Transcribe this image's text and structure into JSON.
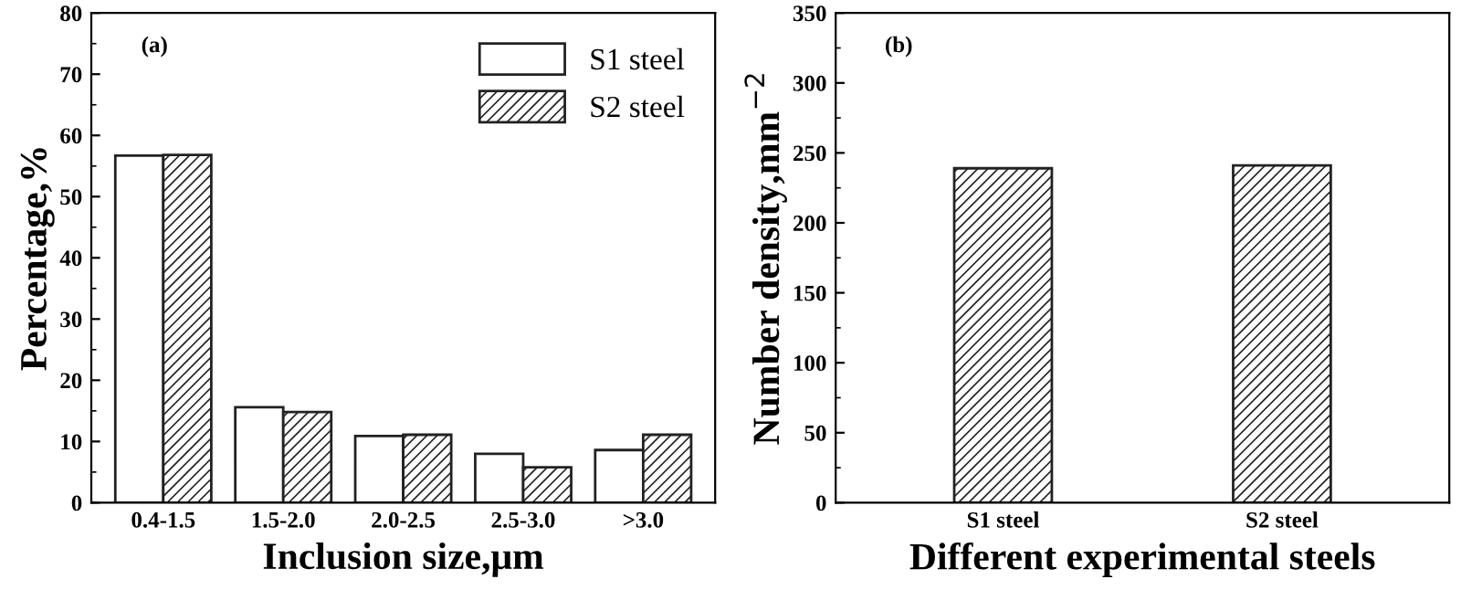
{
  "chart_data": [
    {
      "type": "bar",
      "ylabel": "Percentage,%",
      "xlabel": "Inclusion size,μm",
      "annotations": [
        "(a)"
      ],
      "categories": [
        "0.4-1.5",
        "1.5-2.0",
        "2.0-2.5",
        "2.5-3.0",
        ">3.0"
      ],
      "series": [
        {
          "name": "S1 steel",
          "color": "#ffffff",
          "values": [
            56.7,
            15.6,
            10.9,
            8.0,
            8.6
          ]
        },
        {
          "name": "S2 steel",
          "color": "#222222",
          "values": [
            56.8,
            14.8,
            11.1,
            5.8,
            11.1
          ]
        }
      ],
      "ylim": [
        0,
        80
      ],
      "yticks": [
        0,
        10,
        20,
        30,
        40,
        50,
        60,
        70,
        80
      ],
      "legend": "top right",
      "grid": false
    },
    {
      "type": "bar",
      "ylabel": "Number density,mm$^{−2}$",
      "xlabel": "Different experimental steels",
      "annotations": [
        "(b)"
      ],
      "categories": [
        "S1 steel",
        "S2 steel"
      ],
      "series": [
        {
          "color": "#222222",
          "values": [
            239,
            241
          ]
        }
      ],
      "ylim": [
        0,
        350
      ],
      "yticks": [
        0,
        50,
        100,
        150,
        200,
        250,
        300,
        350
      ],
      "grid": false
    }
  ]
}
